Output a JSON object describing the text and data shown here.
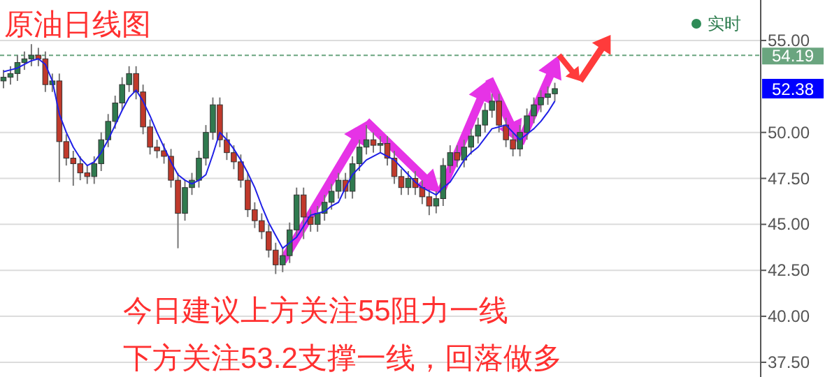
{
  "chart_data": {
    "type": "candlestick",
    "title": "原油日线图",
    "categories": [
      null,
      null,
      null,
      null,
      null,
      null,
      null,
      null,
      null,
      null,
      null,
      null,
      null,
      null,
      null,
      null,
      null,
      null,
      null,
      null,
      null,
      null,
      null,
      null,
      null,
      null,
      null,
      null,
      null,
      null,
      null,
      null,
      null,
      null,
      null,
      null,
      null,
      null,
      null,
      null,
      null,
      null,
      null,
      null,
      null,
      null,
      null,
      null,
      null,
      null,
      null,
      null,
      null,
      null,
      null,
      null,
      null,
      null,
      null,
      null,
      null,
      null,
      null,
      null,
      null,
      null,
      null,
      null,
      null,
      null,
      null,
      null,
      null,
      null,
      null,
      null,
      null,
      null,
      null,
      null,
      null,
      null,
      null,
      null,
      null,
      null,
      null,
      null,
      null,
      null,
      null,
      null,
      null,
      null,
      null,
      null,
      null,
      null,
      null,
      null,
      null,
      null,
      null,
      null,
      null,
      null,
      null,
      null,
      null
    ],
    "ohlc": [
      [
        52.8,
        53.4,
        52.4,
        53.0
      ],
      [
        53.0,
        53.6,
        52.6,
        53.2
      ],
      [
        53.2,
        54.2,
        52.8,
        53.8
      ],
      [
        53.8,
        54.4,
        53.4,
        54.0
      ],
      [
        54.0,
        54.8,
        53.6,
        54.2
      ],
      [
        54.2,
        54.6,
        53.6,
        54.0
      ],
      [
        54.0,
        54.4,
        52.2,
        52.6
      ],
      [
        52.6,
        53.2,
        52.2,
        52.8
      ],
      [
        52.8,
        53.2,
        47.3,
        49.5
      ],
      [
        49.5,
        49.9,
        48.2,
        48.6
      ],
      [
        48.6,
        49.0,
        47.1,
        48.3
      ],
      [
        48.3,
        48.7,
        47.4,
        47.8
      ],
      [
        47.8,
        48.2,
        47.2,
        47.6
      ],
      [
        47.6,
        48.7,
        47.2,
        48.3
      ],
      [
        48.3,
        50.0,
        47.9,
        49.6
      ],
      [
        49.6,
        51.0,
        49.2,
        50.6
      ],
      [
        50.6,
        52.0,
        50.2,
        51.6
      ],
      [
        51.6,
        53.0,
        51.2,
        52.6
      ],
      [
        52.6,
        53.6,
        52.2,
        53.2
      ],
      [
        53.2,
        53.6,
        51.8,
        52.2
      ],
      [
        52.2,
        52.6,
        49.9,
        50.3
      ],
      [
        50.3,
        50.7,
        48.8,
        49.2
      ],
      [
        49.2,
        49.6,
        48.6,
        49.0
      ],
      [
        49.0,
        49.4,
        48.3,
        48.7
      ],
      [
        48.7,
        49.1,
        47.0,
        47.4
      ],
      [
        47.4,
        47.8,
        43.7,
        45.6
      ],
      [
        45.6,
        47.4,
        45.2,
        47.0
      ],
      [
        47.0,
        47.8,
        46.6,
        47.4
      ],
      [
        47.4,
        49.0,
        47.0,
        48.6
      ],
      [
        48.6,
        50.4,
        48.2,
        50.0
      ],
      [
        50.0,
        51.9,
        49.6,
        51.5
      ],
      [
        51.5,
        51.9,
        49.2,
        49.6
      ],
      [
        49.6,
        50.0,
        48.5,
        48.9
      ],
      [
        48.9,
        49.3,
        48.0,
        48.4
      ],
      [
        48.4,
        48.8,
        47.0,
        47.4
      ],
      [
        47.4,
        47.8,
        45.4,
        45.8
      ],
      [
        45.8,
        46.2,
        44.8,
        45.2
      ],
      [
        45.2,
        45.6,
        44.2,
        44.6
      ],
      [
        44.6,
        45.0,
        43.2,
        43.6
      ],
      [
        43.6,
        44.0,
        42.3,
        42.8
      ],
      [
        42.8,
        43.7,
        42.4,
        43.3
      ],
      [
        43.3,
        45.1,
        42.9,
        44.7
      ],
      [
        44.7,
        47.0,
        44.3,
        46.6
      ],
      [
        46.6,
        47.0,
        44.2,
        45.4
      ],
      [
        45.4,
        45.8,
        44.6,
        45.0
      ],
      [
        45.0,
        46.0,
        44.6,
        45.6
      ],
      [
        45.6,
        46.6,
        45.2,
        46.2
      ],
      [
        46.2,
        47.2,
        45.8,
        46.8
      ],
      [
        46.8,
        47.8,
        46.4,
        47.4
      ],
      [
        47.4,
        47.8,
        46.4,
        46.8
      ],
      [
        46.8,
        48.7,
        46.4,
        48.3
      ],
      [
        48.3,
        49.6,
        47.9,
        49.2
      ],
      [
        49.2,
        50.4,
        48.8,
        49.6
      ],
      [
        49.6,
        50.0,
        48.9,
        49.3
      ],
      [
        49.3,
        49.8,
        48.9,
        49.4
      ],
      [
        49.4,
        49.8,
        48.2,
        48.6
      ],
      [
        48.6,
        49.0,
        47.2,
        47.6
      ],
      [
        47.6,
        48.0,
        46.6,
        47.0
      ],
      [
        47.0,
        47.9,
        46.6,
        47.5
      ],
      [
        47.5,
        47.9,
        46.6,
        47.0
      ],
      [
        47.0,
        47.4,
        46.1,
        46.5
      ],
      [
        46.5,
        46.9,
        45.5,
        46.0
      ],
      [
        46.0,
        46.8,
        45.6,
        46.4
      ],
      [
        46.4,
        48.6,
        46.0,
        48.2
      ],
      [
        48.2,
        49.3,
        47.8,
        48.9
      ],
      [
        48.9,
        49.3,
        48.1,
        48.5
      ],
      [
        48.5,
        49.6,
        48.1,
        49.2
      ],
      [
        49.2,
        50.2,
        48.8,
        49.8
      ],
      [
        49.8,
        50.8,
        49.4,
        50.4
      ],
      [
        50.4,
        51.6,
        50.0,
        51.2
      ],
      [
        51.2,
        52.1,
        50.8,
        51.7
      ],
      [
        51.7,
        52.1,
        50.0,
        50.4
      ],
      [
        50.4,
        50.8,
        49.2,
        49.6
      ],
      [
        49.6,
        50.0,
        48.7,
        49.1
      ],
      [
        49.1,
        50.4,
        48.7,
        50.0
      ],
      [
        50.0,
        51.3,
        49.6,
        50.9
      ],
      [
        50.9,
        51.9,
        50.5,
        51.5
      ],
      [
        51.5,
        52.3,
        51.1,
        51.9
      ],
      [
        51.9,
        52.5,
        51.5,
        52.1
      ],
      [
        52.1,
        52.7,
        51.7,
        52.38
      ],
      null,
      null,
      null,
      null,
      null,
      null,
      null,
      null,
      null,
      null,
      null,
      null,
      null,
      null,
      null,
      null,
      null,
      null,
      null,
      null,
      null,
      null,
      null,
      null,
      null,
      null,
      null,
      null,
      null
    ],
    "series": [
      {
        "type": "line",
        "color": "#1f1fe6",
        "values": [
          53.3,
          53.4,
          53.5,
          53.7,
          53.9,
          54.0,
          53.7,
          52.8,
          51.0,
          50.0,
          49.2,
          48.6,
          48.2,
          48.4,
          48.9,
          49.6,
          50.4,
          51.2,
          51.9,
          52.3,
          51.7,
          50.9,
          50.0,
          49.2,
          48.4,
          47.7,
          47.4,
          47.2,
          47.4,
          47.7,
          48.8,
          50.0,
          49.6,
          49.1,
          48.5,
          47.8,
          47.0,
          46.0,
          45.1,
          44.4,
          43.7,
          44.0,
          44.3,
          44.9,
          45.5,
          45.6,
          45.7,
          46.0,
          46.2,
          47.0,
          47.7,
          48.1,
          48.5,
          48.7,
          48.9,
          48.7,
          48.5,
          48.1,
          47.7,
          47.3,
          47.0,
          46.8,
          46.6,
          47.0,
          47.3,
          47.9,
          48.5,
          48.9,
          49.2,
          49.7,
          50.2,
          50.3,
          50.4,
          50.0,
          49.6,
          49.9,
          50.2,
          50.6,
          51.1,
          51.7,
          null,
          null,
          null,
          null,
          null,
          null,
          null,
          null,
          null,
          null,
          null,
          null,
          null,
          null,
          null,
          null,
          null,
          null,
          null,
          null,
          null,
          null,
          null,
          null,
          null,
          null,
          null,
          null,
          null
        ]
      }
    ],
    "ylim": [
      36.7,
      57.2
    ],
    "yticks": [
      {
        "value": 37.5,
        "label": "37.50"
      },
      {
        "value": 40,
        "label": "40.00"
      },
      {
        "value": 42.5,
        "label": "42.50"
      },
      {
        "value": 45,
        "label": "45.00"
      },
      {
        "value": 47.5,
        "label": "47.50"
      },
      {
        "value": 50,
        "label": "50.00"
      },
      {
        "value": 55,
        "label": "55.00"
      }
    ],
    "tick_labels": "y",
    "grid": "y",
    "ref_lines": [
      {
        "axis": "y",
        "value": 54.19,
        "label": "54.19",
        "color": "#6aa57f",
        "line_style": "dashed"
      }
    ],
    "annotations": [
      {
        "text": "52.38",
        "y": 52.38
      },
      "实时",
      "今日建议上方关注55阻力一线",
      "下方关注53.2支撑一线，回落做多"
    ]
  }
}
